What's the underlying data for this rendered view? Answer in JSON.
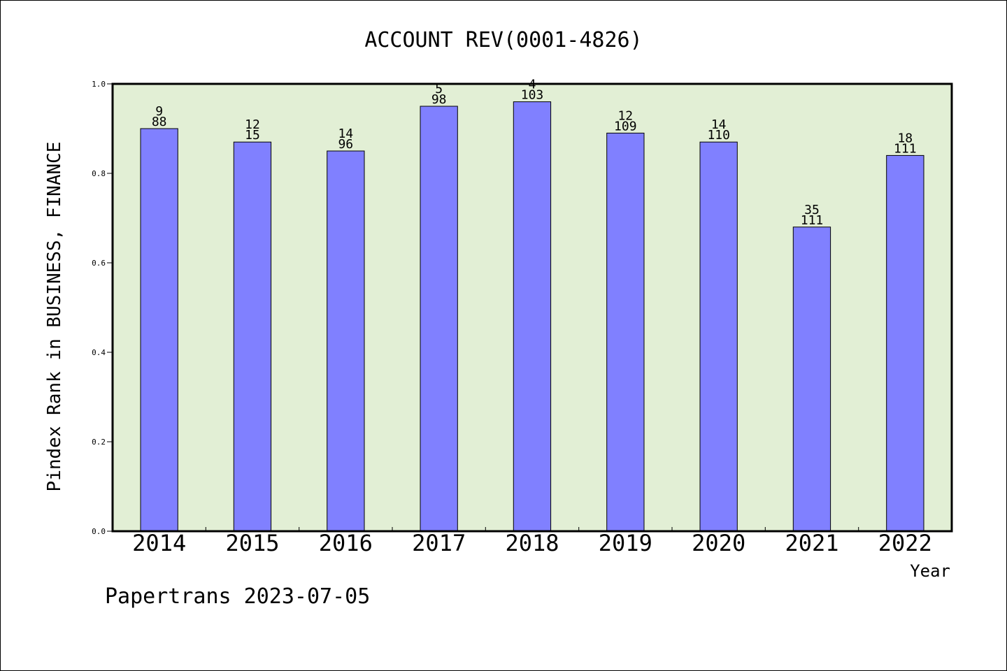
{
  "chart_data": {
    "type": "bar",
    "title": "ACCOUNT REV(0001-4826)",
    "xlabel": "Year",
    "ylabel": "Pindex Rank in BUSINESS, FINANCE",
    "categories": [
      "2014",
      "2015",
      "2016",
      "2017",
      "2018",
      "2019",
      "2020",
      "2021",
      "2022"
    ],
    "values": [
      0.9,
      0.87,
      0.85,
      0.95,
      0.96,
      0.89,
      0.87,
      0.68,
      0.84
    ],
    "rank_labels": [
      "9",
      "12",
      "14",
      "5",
      "4",
      "12",
      "14",
      "35",
      "18"
    ],
    "total_labels": [
      "88",
      "15",
      "96",
      "98",
      "103",
      "109",
      "110",
      "111",
      "111"
    ],
    "ylim": [
      0,
      1.0
    ],
    "yticks": [
      "0.0",
      "0.2",
      "0.4",
      "0.6",
      "0.8",
      "1.0"
    ],
    "grid": false,
    "colors": {
      "bar": "#8080ff",
      "plot_background": "#e2efd5",
      "axis": "#000000"
    }
  },
  "footer": {
    "credit": "Papertrans 2023-07-05"
  }
}
